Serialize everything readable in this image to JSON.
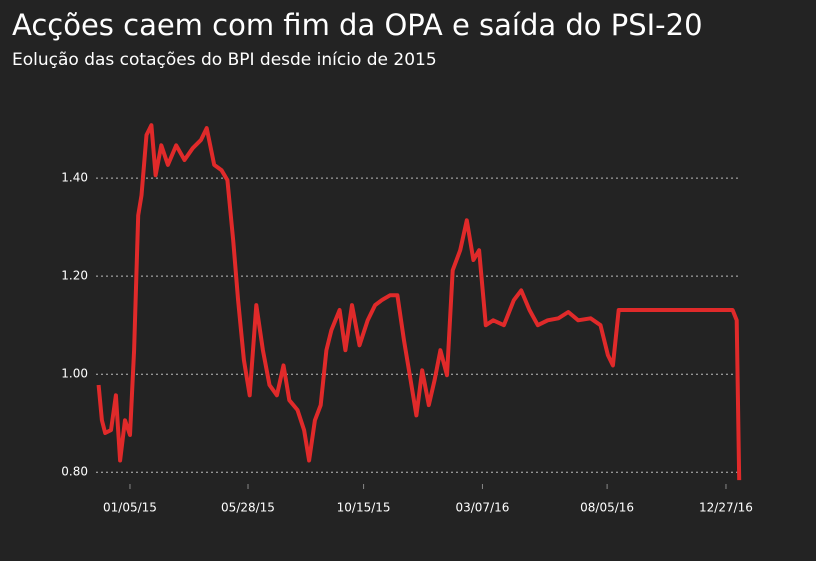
{
  "chart_data": {
    "type": "line",
    "title": "Acções caem com fim da OPA e saída do PSI-20",
    "subtitle": "Eolução das cotações do BPI desde início de 2015",
    "x": [
      "11/28/14",
      "12/02/14",
      "12/06/14",
      "12/13/14",
      "12/19/14",
      "12/24/14",
      "12/30/14",
      "01/05/15",
      "01/10/15",
      "01/15/15",
      "01/19/15",
      "01/25/15",
      "01/31/15",
      "02/05/15",
      "02/12/15",
      "02/20/15",
      "03/02/15",
      "03/12/15",
      "03/22/15",
      "04/01/15",
      "04/08/15",
      "04/17/15",
      "04/26/15",
      "05/03/15",
      "05/10/15",
      "05/16/15",
      "05/23/15",
      "05/30/15",
      "06/07/15",
      "06/15/15",
      "06/23/15",
      "07/02/15",
      "07/10/15",
      "07/17/15",
      "07/27/15",
      "08/04/15",
      "08/10/15",
      "08/17/15",
      "08/24/15",
      "08/31/15",
      "09/06/15",
      "09/16/15",
      "09/23/15",
      "10/01/15",
      "10/10/15",
      "10/20/15",
      "10/29/15",
      "11/06/15",
      "11/16/15",
      "11/25/15",
      "12/03/15",
      "12/11/15",
      "12/18/15",
      "12/25/15",
      "01/02/16",
      "01/09/16",
      "01/16/16",
      "01/24/16",
      "01/31/16",
      "02/09/16",
      "02/17/16",
      "02/25/16",
      "03/03/16",
      "03/11/16",
      "03/20/16",
      "04/02/16",
      "04/14/16",
      "04/23/16",
      "05/03/16",
      "05/13/16",
      "05/25/16",
      "06/07/16",
      "06/19/16",
      "07/01/16",
      "07/16/16",
      "07/28/16",
      "08/06/16",
      "08/12/16",
      "08/19/16",
      "09/03/16",
      "09/27/16",
      "10/22/16",
      "11/16/16",
      "12/10/16",
      "01/04/17",
      "01/09/17",
      "01/12/17"
    ],
    "series": [
      {
        "name": "BPI",
        "color": "#e02a2a",
        "values": [
          0.978,
          0.906,
          0.88,
          0.886,
          0.957,
          0.824,
          0.906,
          0.876,
          1.049,
          1.324,
          1.365,
          1.488,
          1.508,
          1.406,
          1.467,
          1.427,
          1.467,
          1.437,
          1.461,
          1.478,
          1.502,
          1.427,
          1.416,
          1.396,
          1.273,
          1.151,
          1.029,
          0.957,
          1.141,
          1.049,
          0.978,
          0.957,
          1.018,
          0.947,
          0.927,
          0.886,
          0.824,
          0.906,
          0.937,
          1.049,
          1.09,
          1.131,
          1.049,
          1.141,
          1.059,
          1.11,
          1.141,
          1.151,
          1.161,
          1.161,
          1.069,
          0.988,
          0.916,
          1.008,
          0.937,
          0.988,
          1.049,
          0.998,
          1.212,
          1.253,
          1.314,
          1.233,
          1.253,
          1.1,
          1.11,
          1.1,
          1.151,
          1.171,
          1.131,
          1.1,
          1.11,
          1.114,
          1.127,
          1.11,
          1.114,
          1.1,
          1.039,
          1.018,
          1.131,
          1.131,
          1.131,
          1.131,
          1.131,
          1.131,
          1.131,
          1.11,
          0.784
        ]
      }
    ],
    "xlim": [
      "11/20/14",
      "01/13/17"
    ],
    "xticks": [
      "01/05/15",
      "05/28/15",
      "10/15/15",
      "03/07/16",
      "08/05/16",
      "12/27/16"
    ],
    "ylim": [
      0.776,
      1.539
    ],
    "yticks": [
      {
        "value": 0.8,
        "label": "0.80"
      },
      {
        "value": 1.0,
        "label": "1.00"
      },
      {
        "value": 1.2,
        "label": "1.20"
      },
      {
        "value": 1.4,
        "label": "1.40"
      }
    ],
    "grid": true
  }
}
